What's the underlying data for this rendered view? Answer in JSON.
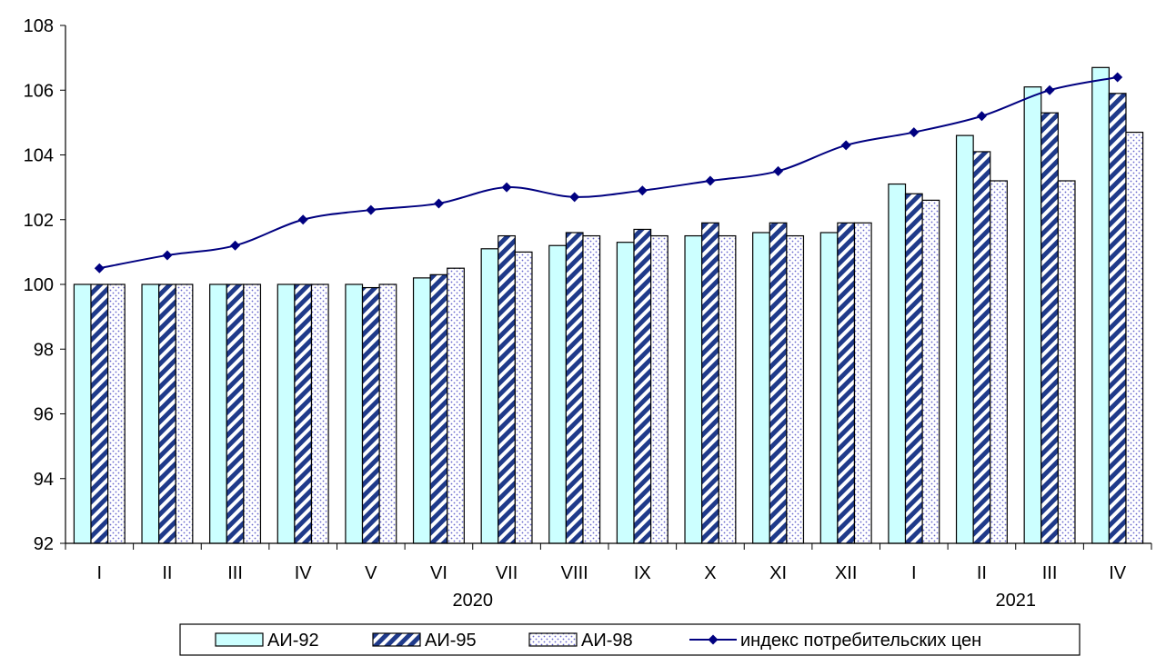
{
  "chart_data": {
    "type": "bar",
    "categories": [
      "I",
      "II",
      "III",
      "IV",
      "V",
      "VI",
      "VII",
      "VIII",
      "IX",
      "X",
      "XI",
      "XII",
      "I",
      "II",
      "III",
      "IV"
    ],
    "year_labels": [
      {
        "label": "2020",
        "start": 0,
        "end": 11
      },
      {
        "label": "2021",
        "start": 12,
        "end": 15
      }
    ],
    "ylim": [
      92,
      108
    ],
    "yticks": [
      92,
      94,
      96,
      98,
      100,
      102,
      104,
      106,
      108
    ],
    "series": [
      {
        "name": "АИ-92",
        "kind": "bar",
        "pattern": "solid",
        "color": "#ccffff",
        "values": [
          100,
          100,
          100,
          100,
          100,
          100.2,
          101.1,
          101.2,
          101.3,
          101.5,
          101.6,
          101.6,
          103.1,
          104.6,
          106.1,
          106.7
        ]
      },
      {
        "name": "АИ-95",
        "kind": "bar",
        "pattern": "diagonal-stripes",
        "color": "#1f3a8a",
        "values": [
          100,
          100,
          100,
          100,
          99.9,
          100.3,
          101.5,
          101.6,
          101.7,
          101.9,
          101.9,
          101.9,
          102.8,
          104.1,
          105.3,
          105.9
        ]
      },
      {
        "name": "АИ-98",
        "kind": "bar",
        "pattern": "dots",
        "color": "#6666cc",
        "values": [
          100,
          100,
          100,
          100,
          100,
          100.5,
          101,
          101.5,
          101.5,
          101.5,
          101.5,
          101.9,
          102.6,
          103.2,
          103.2,
          104.7
        ]
      },
      {
        "name": "индекс потребительских цен",
        "kind": "line",
        "color": "#000080",
        "values": [
          100.5,
          100.9,
          101.2,
          102,
          102.3,
          102.5,
          103,
          102.7,
          102.9,
          103.2,
          103.5,
          104.3,
          104.7,
          105.2,
          106,
          106.4
        ]
      }
    ],
    "grid": false,
    "legend_position": "bottom"
  }
}
